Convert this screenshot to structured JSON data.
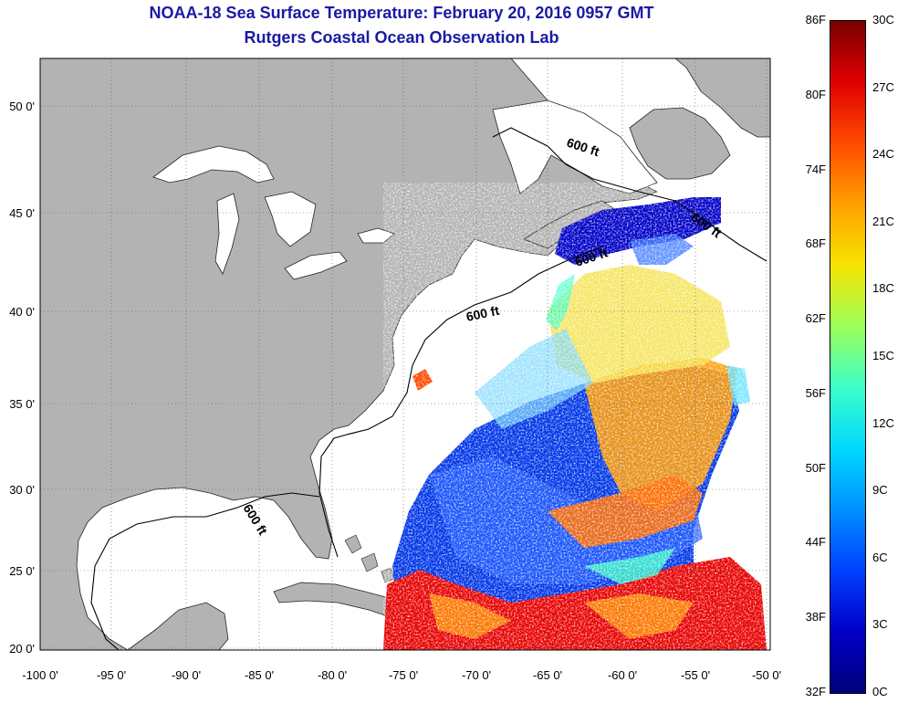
{
  "title": {
    "line1": "NOAA-18 Sea Surface Temperature:  February 20, 2016 0957 GMT",
    "line2": "Rutgers Coastal Ocean Observation Lab"
  },
  "map": {
    "lon_range": [
      -100,
      -50
    ],
    "lat_range": [
      20,
      52
    ],
    "lon_ticks": [
      "-100 0'",
      "-95 0'",
      "-90 0'",
      "-85 0'",
      "-80 0'",
      "-75 0'",
      "-70 0'",
      "-65 0'",
      "-60 0'",
      "-55 0'",
      "-50 0'"
    ],
    "lat_ticks": [
      "50 0'",
      "45 0'",
      "40 0'",
      "35 0'",
      "30 0'",
      "25 0'",
      "20 0'"
    ],
    "land_color": "#b3b3b3",
    "grid": "dotted",
    "isobath_labels": [
      "600 ft",
      "600 ft",
      "600 ft",
      "600 ft",
      "600 ft"
    ]
  },
  "colorbar": {
    "fahrenheit": [
      "86F",
      "80F",
      "74F",
      "68F",
      "62F",
      "56F",
      "50F",
      "44F",
      "38F",
      "32F"
    ],
    "celsius": [
      "30C",
      "27C",
      "24C",
      "21C",
      "18C",
      "15C",
      "12C",
      "9C",
      "6C",
      "3C",
      "0C"
    ],
    "colors": [
      "#7a0000",
      "#e00000",
      "#ff4a00",
      "#ffa000",
      "#f5e400",
      "#9cff5a",
      "#3cffc8",
      "#00d8ff",
      "#0090ff",
      "#0040ff",
      "#0000c8",
      "#00007a"
    ]
  }
}
